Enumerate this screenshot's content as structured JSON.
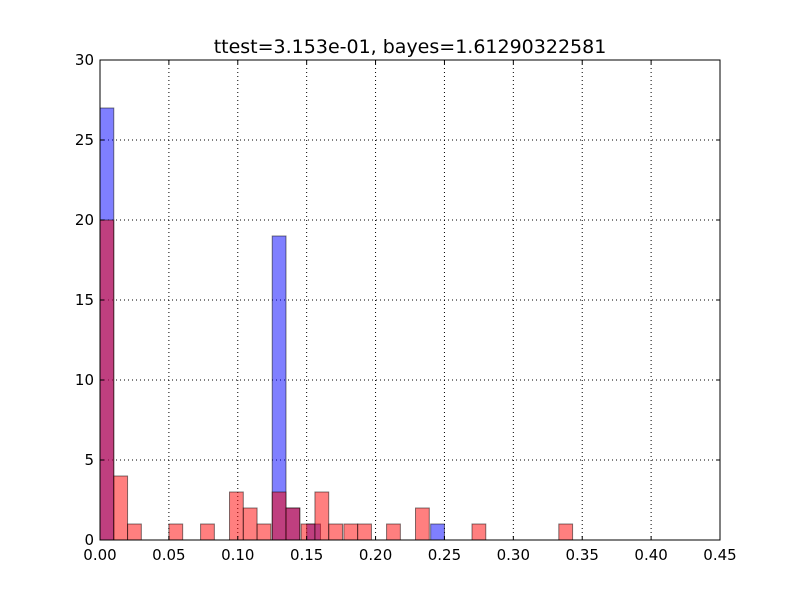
{
  "chart_data": {
    "type": "bar",
    "title": "ttest=3.153e-01, bayes=1.61290322581",
    "xlabel": "",
    "ylabel": "",
    "xlim": [
      0.0,
      0.45
    ],
    "ylim": [
      0,
      30
    ],
    "grid": true,
    "legend": "none",
    "bin_width": 0.01,
    "x_ticks": [
      "0.00",
      "0.05",
      "0.10",
      "0.15",
      "0.20",
      "0.25",
      "0.30",
      "0.35",
      "0.40",
      "0.45"
    ],
    "y_ticks": [
      "0",
      "5",
      "10",
      "15",
      "20",
      "25",
      "30"
    ],
    "series": [
      {
        "color": "#0000ff",
        "opacity": 0.5,
        "bins": [
          {
            "x": 0.0,
            "count": 27
          },
          {
            "x": 0.125,
            "count": 19
          },
          {
            "x": 0.135,
            "count": 2
          },
          {
            "x": 0.15,
            "count": 1
          },
          {
            "x": 0.24,
            "count": 1
          }
        ]
      },
      {
        "color": "#ff0000",
        "opacity": 0.5,
        "bins": [
          {
            "x": 0.0,
            "count": 20
          },
          {
            "x": 0.01,
            "count": 4
          },
          {
            "x": 0.02,
            "count": 1
          },
          {
            "x": 0.05,
            "count": 1
          },
          {
            "x": 0.073,
            "count": 1
          },
          {
            "x": 0.094,
            "count": 3
          },
          {
            "x": 0.104,
            "count": 2
          },
          {
            "x": 0.114,
            "count": 1
          },
          {
            "x": 0.125,
            "count": 3
          },
          {
            "x": 0.135,
            "count": 2
          },
          {
            "x": 0.146,
            "count": 1
          },
          {
            "x": 0.156,
            "count": 3
          },
          {
            "x": 0.166,
            "count": 1
          },
          {
            "x": 0.177,
            "count": 1
          },
          {
            "x": 0.187,
            "count": 1
          },
          {
            "x": 0.208,
            "count": 1
          },
          {
            "x": 0.229,
            "count": 2
          },
          {
            "x": 0.27,
            "count": 1
          },
          {
            "x": 0.333,
            "count": 1
          }
        ]
      }
    ]
  }
}
